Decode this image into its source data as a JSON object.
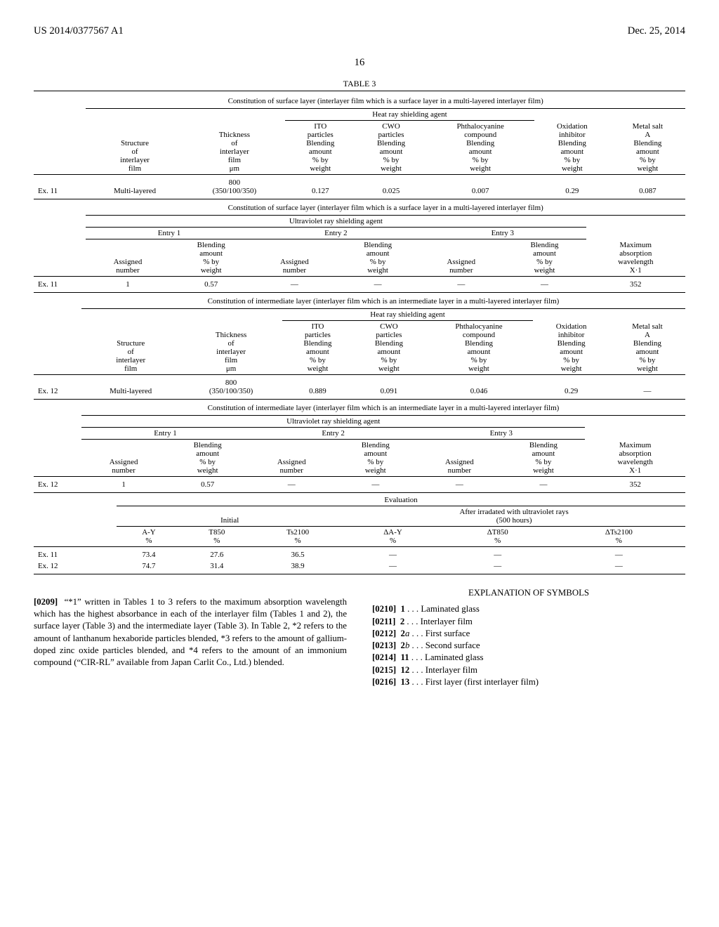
{
  "header": {
    "pub_no": "US 2014/0377567 A1",
    "date": "Dec. 25, 2014",
    "page": "16"
  },
  "table3_title": "TABLE 3",
  "constitution_caption_surface": "Constitution of surface layer (interlayer film which is a surface layer in a multi-layered interlayer film)",
  "constitution_caption_inter": "Constitution of intermediate layer (interlayer film which is an intermediate layer in a multi-layered interlayer film)",
  "heat_ray_label": "Heat ray shielding agent",
  "uv_label": "Ultraviolet ray shielding agent",
  "col_headers": {
    "structure": "Structure\nof\ninterlayer\nfilm",
    "thickness": "Thickness\nof\ninterlayer\nfilm\nμm",
    "ito": "ITO\nparticles\nBlending\namount\n% by\nweight",
    "cwo": "CWO\nparticles\nBlending\namount\n% by\nweight",
    "phth": "Phthalocyanine\ncompound\nBlending\namount\n% by\nweight",
    "oxinh": "Oxidation\ninhibitor\nBlending\namount\n% by\nweight",
    "metal": "Metal salt\nA\nBlending\namount\n% by\nweight",
    "assigned": "Assigned\nnumber",
    "blend": "Blending\namount\n% by\nweight",
    "maxabs": "Maximum\nabsorption\nwavelength\nX·1",
    "entry1": "Entry 1",
    "entry2": "Entry 2",
    "entry3": "Entry 3"
  },
  "ex11_label": "Ex. 11",
  "ex12_label": "Ex. 12",
  "ex11_heat": {
    "structure": "Multi-layered",
    "thickness_a": "800",
    "thickness_b": "(350/100/350)",
    "ito": "0.127",
    "cwo": "0.025",
    "phth": "0.007",
    "oxinh": "0.29",
    "metal": "0.087"
  },
  "ex11_uv": {
    "e1_num": "1",
    "e1_blend": "0.57",
    "e2_num": "—",
    "e2_blend": "—",
    "e3_num": "—",
    "e3_blend": "—",
    "maxabs": "352"
  },
  "ex12_heat": {
    "structure": "Multi-layered",
    "thickness_a": "800",
    "thickness_b": "(350/100/350)",
    "ito": "0.889",
    "cwo": "0.091",
    "phth": "0.046",
    "oxinh": "0.29",
    "metal": "—"
  },
  "ex12_uv": {
    "e1_num": "1",
    "e1_blend": "0.57",
    "e2_num": "—",
    "e2_blend": "—",
    "e3_num": "—",
    "e3_blend": "—",
    "maxabs": "352"
  },
  "eval": {
    "label": "Evaluation",
    "initial": "Initial",
    "after": "After irradated with ultraviolet rays\n(500 hours)",
    "ay": "A-Y\n%",
    "t850": "T850\n%",
    "ts2100": "Ts2100\n%",
    "day": "ΔA-Y\n%",
    "dt850": "ΔT850\n%",
    "dts2100": "ΔTs2100\n%",
    "r11": {
      "ay": "73.4",
      "t850": "27.6",
      "ts2100": "36.5",
      "day": "—",
      "dt850": "—",
      "dts2100": "—"
    },
    "r12": {
      "ay": "74.7",
      "t850": "31.4",
      "ts2100": "38.9",
      "day": "—",
      "dt850": "—",
      "dts2100": "—"
    }
  },
  "footnote": {
    "num": "[0209]",
    "text": "  “*1” written in Tables 1 to 3 refers to the maximum absorption wavelength which has the highest absorbance in each of the interlayer film (Tables 1 and 2), the surface layer (Table 3) and the intermediate layer (Table 3). In Table 2, *2 refers to the amount of lanthanum hexaboride particles blended, *3 refers to the amount of gallium-doped zinc oxide particles blended, and *4 refers to the amount of an immonium compound (“CIR-RL” available from Japan Carlit Co., Ltd.) blended."
  },
  "symbols": {
    "head": "EXPLANATION OF SYMBOLS",
    "items": [
      {
        "n": "[0210]",
        "k": "1",
        "t": " . . . Laminated glass"
      },
      {
        "n": "[0211]",
        "k": "2",
        "t": " . . . Interlayer film"
      },
      {
        "n": "[0212]",
        "k": "2a",
        "t": " . . . First surface",
        "italic_k": true
      },
      {
        "n": "[0213]",
        "k": "2b",
        "t": " . . . Second surface",
        "italic_k": true
      },
      {
        "n": "[0214]",
        "k": "11",
        "t": " . . . Laminated glass"
      },
      {
        "n": "[0215]",
        "k": "12",
        "t": " . . . Interlayer film"
      },
      {
        "n": "[0216]",
        "k": "13",
        "t": " . . . First layer (first interlayer film)"
      }
    ]
  }
}
